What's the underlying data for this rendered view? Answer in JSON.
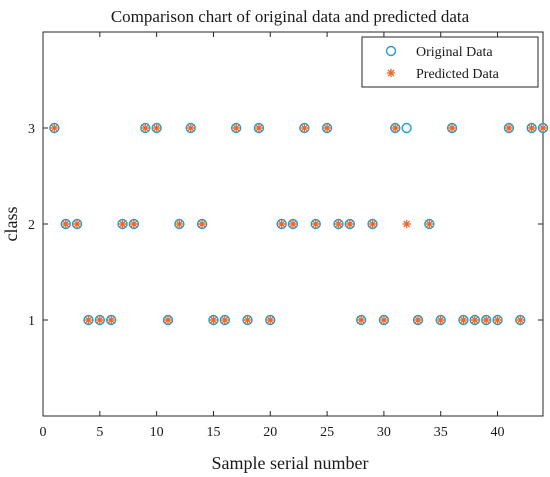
{
  "chart_data": {
    "type": "scatter",
    "title": "Comparison chart of original data and predicted data",
    "xlabel": "Sample serial number",
    "ylabel": "class",
    "xlim": [
      0,
      44
    ],
    "ylim": [
      0,
      4
    ],
    "xticks": [
      0,
      5,
      10,
      15,
      20,
      25,
      30,
      35,
      40
    ],
    "yticks": [
      1,
      2,
      3
    ],
    "grid": false,
    "legend_position": "top-right",
    "x": [
      1,
      2,
      3,
      4,
      5,
      6,
      7,
      8,
      9,
      10,
      11,
      12,
      13,
      14,
      15,
      16,
      17,
      18,
      19,
      20,
      21,
      22,
      23,
      24,
      25,
      26,
      27,
      28,
      29,
      30,
      31,
      32,
      33,
      34,
      35,
      36,
      37,
      38,
      39,
      40,
      41,
      42,
      43,
      44
    ],
    "series": [
      {
        "name": "Original Data",
        "marker": "circle",
        "color": "#1f9fd0",
        "values": [
          3,
          2,
          2,
          1,
          1,
          1,
          2,
          2,
          3,
          3,
          1,
          2,
          3,
          2,
          1,
          1,
          3,
          1,
          3,
          1,
          2,
          2,
          3,
          2,
          3,
          2,
          2,
          1,
          2,
          1,
          3,
          3,
          1,
          2,
          1,
          3,
          1,
          1,
          1,
          1,
          3,
          1,
          3,
          3
        ]
      },
      {
        "name": "Predicted Data",
        "marker": "asterisk",
        "color": "#e8672a",
        "values": [
          3,
          2,
          2,
          1,
          1,
          1,
          2,
          2,
          3,
          3,
          1,
          2,
          3,
          2,
          1,
          1,
          3,
          1,
          3,
          1,
          2,
          2,
          3,
          2,
          3,
          2,
          2,
          1,
          2,
          1,
          3,
          2,
          1,
          2,
          1,
          3,
          1,
          1,
          1,
          1,
          3,
          1,
          3,
          3
        ]
      }
    ]
  }
}
